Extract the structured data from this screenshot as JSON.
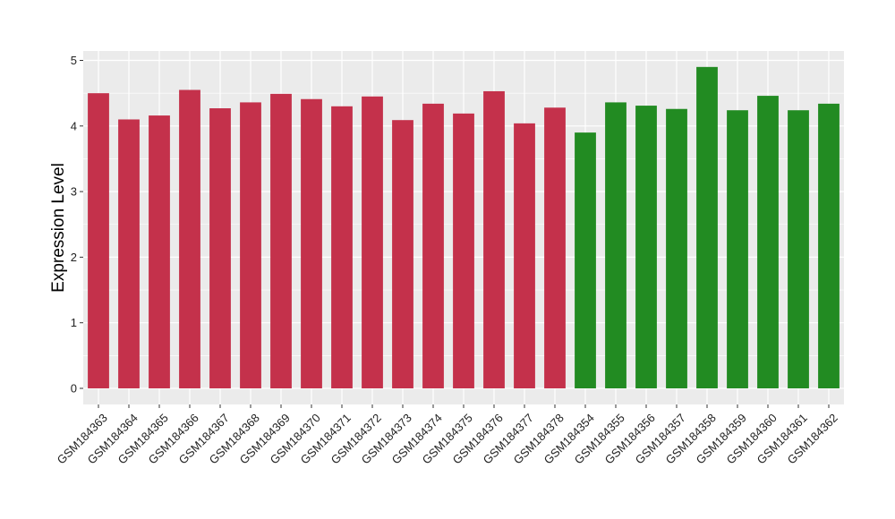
{
  "chart_data": {
    "type": "bar",
    "ylabel": "Expression Level",
    "xlabel": "",
    "ylim": [
      0,
      5.15
    ],
    "yticks": [
      0,
      1,
      2,
      3,
      4,
      5
    ],
    "grid": true,
    "colors": {
      "group_a": "#c4314b",
      "group_b": "#228b22",
      "panel": "#ebebeb",
      "grid": "#ffffff"
    },
    "categories": [
      "GSM184363",
      "GSM184364",
      "GSM184365",
      "GSM184366",
      "GSM184367",
      "GSM184368",
      "GSM184369",
      "GSM184370",
      "GSM184371",
      "GSM184372",
      "GSM184373",
      "GSM184374",
      "GSM184375",
      "GSM184376",
      "GSM184377",
      "GSM184378",
      "GSM184354",
      "GSM184355",
      "GSM184356",
      "GSM184357",
      "GSM184358",
      "GSM184359",
      "GSM184360",
      "GSM184361",
      "GSM184362"
    ],
    "values": [
      4.5,
      4.1,
      4.16,
      4.55,
      4.27,
      4.36,
      4.49,
      4.41,
      4.3,
      4.45,
      4.09,
      4.34,
      4.19,
      4.53,
      4.04,
      4.28,
      3.9,
      4.36,
      4.31,
      4.26,
      4.9,
      4.24,
      4.46,
      4.24,
      4.34
    ],
    "bar_colors": [
      "group_a",
      "group_a",
      "group_a",
      "group_a",
      "group_a",
      "group_a",
      "group_a",
      "group_a",
      "group_a",
      "group_a",
      "group_a",
      "group_a",
      "group_a",
      "group_a",
      "group_a",
      "group_a",
      "group_b",
      "group_b",
      "group_b",
      "group_b",
      "group_b",
      "group_b",
      "group_b",
      "group_b",
      "group_b"
    ]
  }
}
